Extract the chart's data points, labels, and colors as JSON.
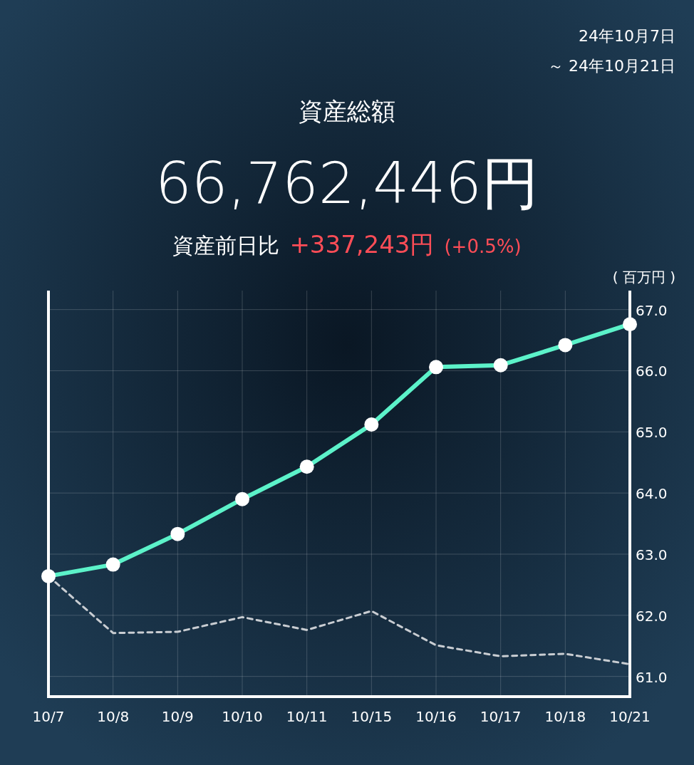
{
  "chart_data": {
    "type": "line",
    "title": "資産総額",
    "subtitle": "66,762,446円",
    "annotations": [
      "24年10月7日",
      "～ 24年10月21日",
      "資産前日比",
      "+337,243円",
      "(+0.5%)"
    ],
    "ylabel": "( 百万円 )",
    "categories": [
      "10/7",
      "10/8",
      "10/9",
      "10/10",
      "10/11",
      "10/15",
      "10/16",
      "10/17",
      "10/18",
      "10/21"
    ],
    "series": [
      {
        "color": "#5cf2c9",
        "marker": "circle",
        "line_style": "solid",
        "values": [
          62.64,
          62.83,
          63.33,
          63.9,
          64.43,
          65.12,
          66.06,
          66.09,
          66.42,
          66.76
        ]
      },
      {
        "color": "#c9cdd2",
        "marker": "none",
        "line_style": "dashed",
        "values": [
          62.64,
          61.71,
          61.73,
          61.97,
          61.76,
          62.07,
          61.51,
          61.33,
          61.37,
          61.2
        ]
      }
    ],
    "ylim": [
      60.67,
      67.31
    ],
    "yticks": [
      {
        "value": 61,
        "label": "61.0"
      },
      {
        "value": 62,
        "label": "62.0"
      },
      {
        "value": 63,
        "label": "63.0"
      },
      {
        "value": 64,
        "label": "64.0"
      },
      {
        "value": 65,
        "label": "65.0"
      },
      {
        "value": 66,
        "label": "66.0"
      },
      {
        "value": 67,
        "label": "67.0"
      }
    ],
    "grid": true
  }
}
